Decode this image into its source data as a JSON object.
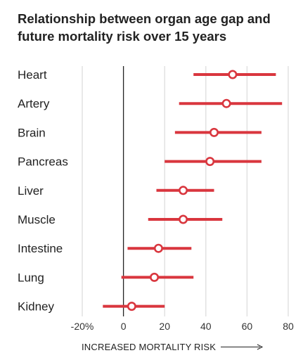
{
  "chart_data": {
    "type": "interval",
    "title": "Relationship between organ age gap and future mortality risk over 15 years",
    "xlabel": "INCREASED MORTALITY RISK",
    "xlim": [
      -20,
      80
    ],
    "x_ticks": [
      -20,
      0,
      20,
      40,
      60,
      80
    ],
    "x_tick_labels": [
      "-20%",
      "0",
      "20",
      "40",
      "60",
      "80"
    ],
    "grid": true,
    "colors": {
      "interval": "#d9363e",
      "marker_fill": "#ffffff",
      "gridline": "#dddddd",
      "zero_line": "#222222"
    },
    "categories": [
      "Heart",
      "Artery",
      "Brain",
      "Pancreas",
      "Liver",
      "Muscle",
      "Intestine",
      "Lung",
      "Kidney"
    ],
    "series": [
      {
        "estimate": [
          53,
          50,
          44,
          42,
          29,
          29,
          17,
          15,
          4
        ],
        "lower": [
          34,
          27,
          25,
          20,
          16,
          12,
          2,
          -1,
          -10
        ],
        "upper": [
          74,
          77,
          67,
          67,
          44,
          48,
          33,
          34,
          20
        ]
      }
    ]
  }
}
